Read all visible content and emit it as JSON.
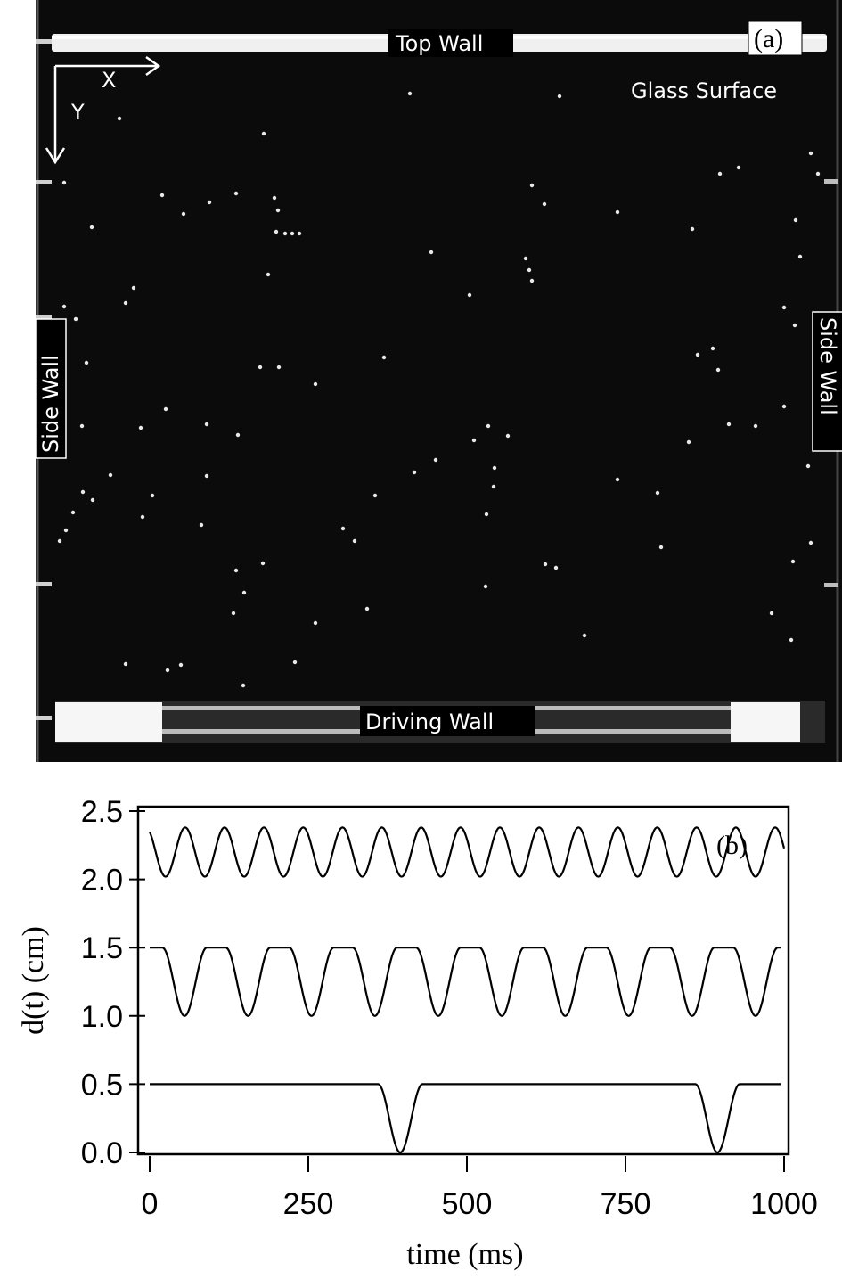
{
  "panel_a": {
    "tag": "(a)",
    "labels": {
      "top_wall": "Top Wall",
      "driving_wall": "Driving Wall",
      "side_wall_left": "Side Wall",
      "side_wall_right": "Side Wall",
      "glass_surface": "Glass Surface",
      "axis_x": "X",
      "axis_y": "Y"
    },
    "colors": {
      "background": "#0a0a0a",
      "wall": "#f2f2f2",
      "particle": "#e8e8e8"
    }
  },
  "panel_b": {
    "tag": "(b)",
    "chart_data": {
      "type": "line",
      "xlabel": "time (ms)",
      "ylabel": "d(t) (cm)",
      "xlim": [
        0,
        1000
      ],
      "ylim": [
        0,
        2.5
      ],
      "xticks": [
        0,
        250,
        500,
        750,
        1000
      ],
      "yticks": [
        "0.0",
        "0.5",
        "1.0",
        "1.5",
        "2.0",
        "2.5"
      ],
      "grid": false,
      "series": [
        {
          "shape": "sinusoid",
          "baseline": 2.2,
          "amplitude": 0.18,
          "period_ms": 62,
          "phase_ms": -6,
          "t_start": 0,
          "t_end": 1000
        },
        {
          "shape": "dips",
          "level": 1.5,
          "depth": 0.5,
          "period_ms": 100,
          "first_min_ms": 55,
          "dip_width_ms": 70,
          "t_start": 0,
          "t_end": 995
        },
        {
          "shape": "dips",
          "level": 0.5,
          "depth": 0.5,
          "period_ms": 500,
          "first_min_ms": 395,
          "dip_width_ms": 70,
          "t_start": 0,
          "t_end": 995
        }
      ]
    }
  }
}
